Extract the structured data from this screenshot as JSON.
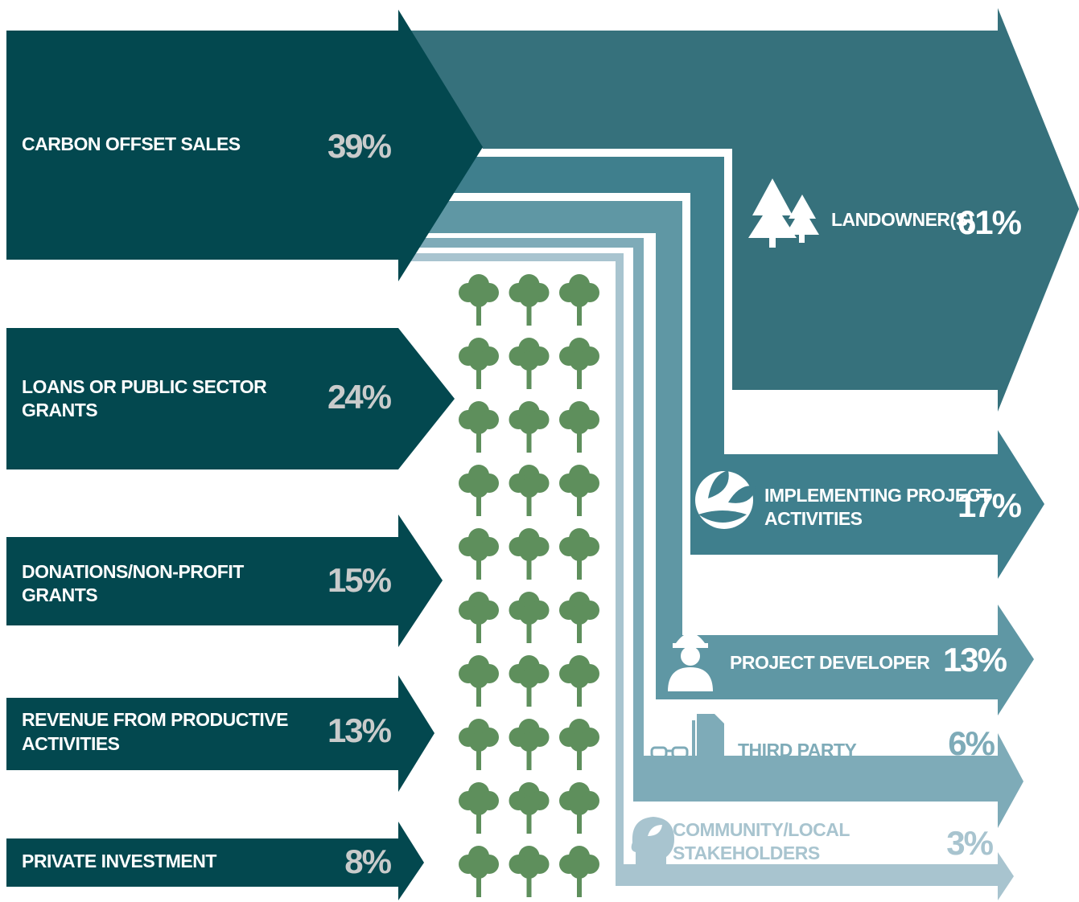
{
  "sources": [
    {
      "label": [
        "CARBON OFFSET SALES"
      ],
      "share": "39%"
    },
    {
      "label": [
        "LOANS OR PUBLIC SECTOR",
        "GRANTS"
      ],
      "share": "24%"
    },
    {
      "label": [
        "DONATIONS/NON-PROFIT",
        "GRANTS"
      ],
      "share": "15%"
    },
    {
      "label": [
        "REVENUE FROM PRODUCTIVE",
        "ACTIVITIES"
      ],
      "share": "13%"
    },
    {
      "label": [
        "PRIVATE INVESTMENT"
      ],
      "share": "8%"
    }
  ],
  "recipients": [
    {
      "label": [
        "LANDOWNER(S)"
      ],
      "share": "61%"
    },
    {
      "label": [
        "IMPLEMENTING PROJECT",
        "ACTIVITIES"
      ],
      "share": "17%"
    },
    {
      "label": [
        "PROJECT DEVELOPER"
      ],
      "share": "13%"
    },
    {
      "label": [
        "THIRD PARTY"
      ],
      "share": "6%"
    },
    {
      "label": [
        "COMMUNITY/LOCAL",
        "STAKEHOLDERS"
      ],
      "share": "3%"
    }
  ]
}
